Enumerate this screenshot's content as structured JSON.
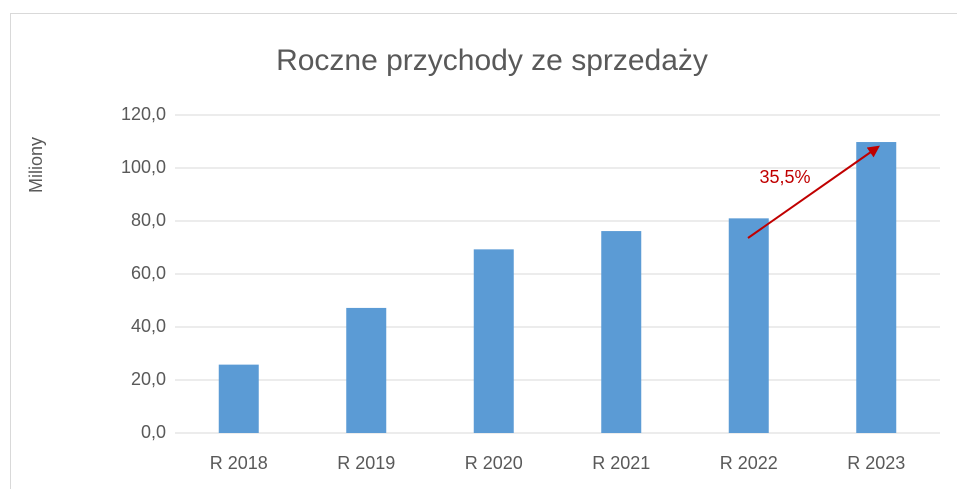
{
  "chart_data": {
    "type": "bar",
    "title": "Roczne przychody ze sprzedaży",
    "y_label": "Miliony",
    "categories": [
      "R 2018",
      "R 2019",
      "R 2020",
      "R 2021",
      "R 2022",
      "R 2023"
    ],
    "values": [
      25.8,
      47.2,
      69.3,
      76.2,
      81.0,
      109.8
    ],
    "color": "#5b9bd5",
    "ylim": [
      0,
      120
    ],
    "yticks": [
      {
        "value": 0,
        "label": "0,0"
      },
      {
        "value": 20,
        "label": "20,0"
      },
      {
        "value": 40,
        "label": "40,0"
      },
      {
        "value": 60,
        "label": "60,0"
      },
      {
        "value": 80,
        "label": "80,0"
      },
      {
        "value": 100,
        "label": "100,0"
      },
      {
        "value": 120,
        "label": "120,0"
      }
    ],
    "grid": true,
    "annotation": "35,5%"
  }
}
